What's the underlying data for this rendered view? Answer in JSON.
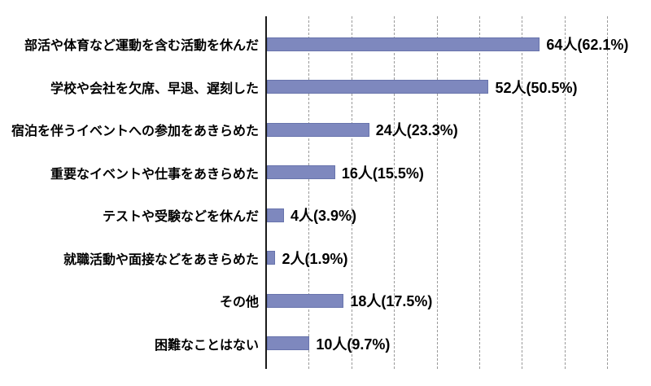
{
  "chart_data": {
    "type": "bar",
    "orientation": "horizontal",
    "title": "",
    "xlabel": "",
    "ylabel": "",
    "categories": [
      "部活や体育など運動を含む活動を休んだ",
      "学校や会社を欠席、早退、遅刻した",
      "宿泊を伴うイベントへの参加をあきらめた",
      "重要なイベントや仕事をあきらめた",
      "テストや受験などを休んだ",
      "就職活動や面接などをあきらめた",
      "その他",
      "困難なことはない"
    ],
    "values": [
      64,
      52,
      24,
      16,
      4,
      2,
      18,
      10
    ],
    "value_labels": [
      "64人(62.1%)",
      "52人(50.5%)",
      "24人(23.3%)",
      "16人(15.5%)",
      "4人(3.9%)",
      "2人(1.9%)",
      "18人(17.5%)",
      "10人(9.7%)"
    ],
    "percentages": [
      62.1,
      50.5,
      23.3,
      15.5,
      3.9,
      1.9,
      17.5,
      9.7
    ],
    "unit": "人",
    "xlim": [
      0,
      80
    ],
    "gridline_interval": 10,
    "grid": "vertical-dashed",
    "legend": "none",
    "colors": {
      "bar_fill": "#7e88be",
      "bar_border": "#6874ac",
      "axis": "#1a1a1a",
      "gridline": "#9a9a9a",
      "text": "#000000",
      "background": "#ffffff"
    }
  }
}
